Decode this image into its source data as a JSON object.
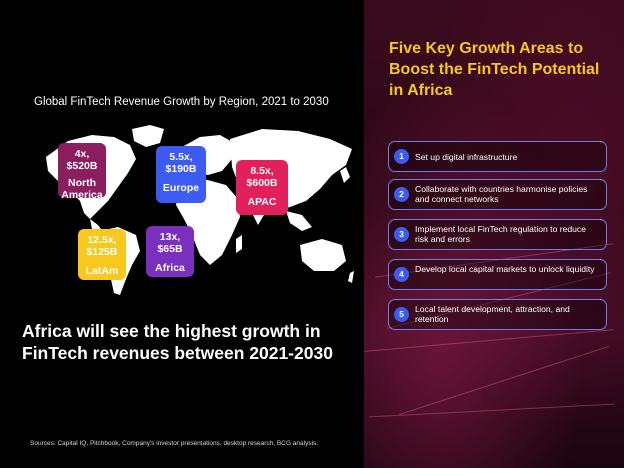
{
  "map": {
    "title": "Global FinTech Revenue Growth by Region, 2021 to 2030",
    "badges": [
      {
        "growth": "4x,",
        "revenue": "$520B",
        "region": "North America",
        "color": "#8b1e5e"
      },
      {
        "growth": "5.5x,",
        "revenue": "$190B",
        "region": "Europe",
        "color": "#3b5bf2"
      },
      {
        "growth": "8.5x,",
        "revenue": "$600B",
        "region": "APAC",
        "color": "#e2205c"
      },
      {
        "growth": "12.5x,",
        "revenue": "$125B",
        "region": "LatAm",
        "color": "#f7c81e"
      },
      {
        "growth": "13x,",
        "revenue": "$65B",
        "region": "Africa",
        "color": "#7b2fbf"
      }
    ]
  },
  "headline": "Africa will see the highest growth in FinTech revenues between 2021-2030",
  "sources": "Sources: Capital IQ, Pitchbook, Company's investor presentations, desktop research, BCG analysis.",
  "right_panel": {
    "title": "Five Key Growth Areas to Boost the FinTech Potential in Africa",
    "title_color": "#f7c81e",
    "items": [
      {
        "number": "1",
        "text": "Set up digital infrastructure"
      },
      {
        "number": "2",
        "text": "Collaborate with countries harmonise policies and connect networks"
      },
      {
        "number": "3",
        "text": "Implement local FinTech regulation to reduce risk and errors"
      },
      {
        "number": "4",
        "text": "Develop local capital markets to unlock liquidity"
      },
      {
        "number": "5",
        "text": "Local talent development, attraction, and retention"
      }
    ]
  }
}
